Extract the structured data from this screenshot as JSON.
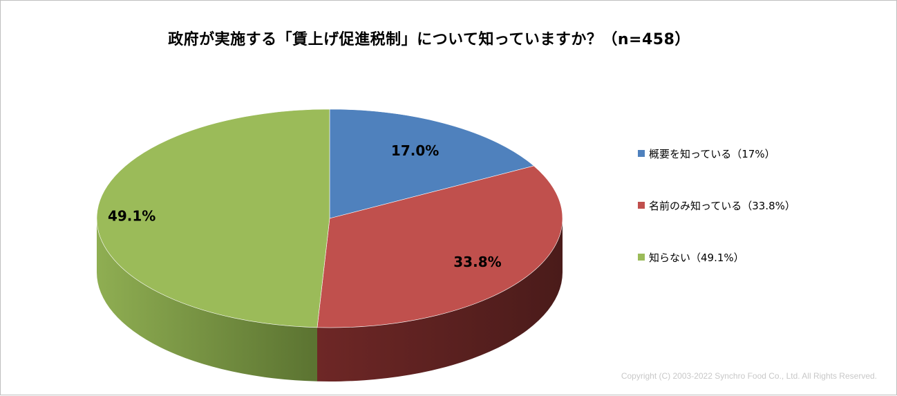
{
  "chart_data": {
    "type": "pie",
    "title": "政府が実施する「賃上げ促進税制」について知っていますか？（n=458）",
    "categories": [
      "概要を知っている（17%）",
      "名前のみ知っている（33.8%）",
      "知らない（49.1%）"
    ],
    "values": [
      17.0,
      33.8,
      49.1
    ],
    "data_labels": [
      "17.0%",
      "33.8%",
      "49.1%"
    ],
    "colors": [
      "#4f81bd",
      "#c0504d",
      "#9bbb59"
    ],
    "legend_position": "right"
  },
  "footer": {
    "copyright": "Copyright (C) 2003-2022   Synchro Food Co., Ltd. All Rights Reserved."
  }
}
